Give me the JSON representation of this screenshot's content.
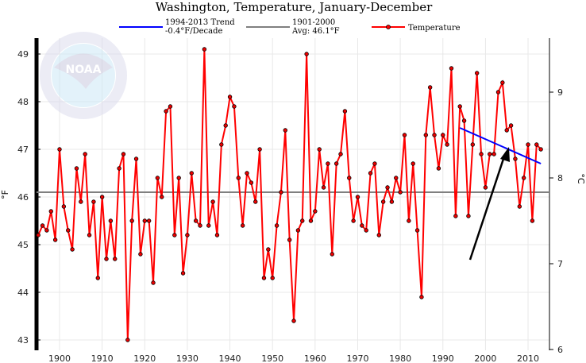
{
  "chart_data": {
    "type": "line",
    "title": "Washington, Temperature, January-December",
    "xlabel": "",
    "ylabel": "°F",
    "ylabel_right": "°C",
    "xlim": [
      1895,
      2014
    ],
    "ylim": [
      42.8,
      49.4
    ],
    "x_ticks": [
      1900,
      1910,
      1920,
      1930,
      1940,
      1950,
      1960,
      1970,
      1980,
      1990,
      2000,
      2010
    ],
    "y_ticks": [
      43,
      44,
      45,
      46,
      47,
      48,
      49
    ],
    "y_ticks_right": [
      6,
      7,
      8,
      9
    ],
    "grid": true,
    "legend_position": "top",
    "legend": {
      "trend_label1": "1994-2013 Trend",
      "trend_label2": "-0.4°F/Decade",
      "avg_label1": "1901-2000",
      "avg_label2": "Avg: 46.1°F",
      "temp_label": "Temperature"
    },
    "colors": {
      "temperature": "#ff0000",
      "trend": "#0000ff",
      "average": "#808080"
    },
    "average": 46.1,
    "trend": {
      "x": [
        1994,
        2013
      ],
      "y": [
        47.45,
        46.7
      ]
    },
    "annotation": "arrow pointing to trend line",
    "watermark": "NOAA · National Oceanic and Atmospheric Administration · U.S. Department of Commerce",
    "start_year": 1895,
    "values": [
      45.2,
      45.4,
      45.3,
      45.7,
      45.1,
      47.0,
      45.8,
      45.3,
      44.9,
      46.6,
      45.9,
      46.9,
      45.2,
      45.9,
      44.3,
      46.0,
      44.7,
      45.5,
      44.7,
      46.6,
      46.9,
      43.0,
      45.5,
      46.8,
      44.8,
      45.5,
      45.5,
      44.2,
      46.4,
      46.0,
      47.8,
      47.9,
      45.2,
      46.4,
      44.4,
      45.2,
      46.5,
      45.5,
      45.4,
      49.1,
      45.4,
      45.9,
      45.2,
      47.1,
      47.5,
      48.1,
      47.9,
      46.4,
      45.4,
      46.5,
      46.3,
      45.9,
      47.0,
      44.3,
      44.9,
      44.3,
      45.4,
      46.1,
      47.4,
      45.1,
      43.4,
      45.3,
      45.5,
      49.0,
      45.5,
      45.7,
      47.0,
      46.2,
      46.7,
      44.8,
      46.7,
      46.9,
      47.8,
      46.4,
      45.5,
      46.0,
      45.4,
      45.3,
      46.5,
      46.7,
      45.2,
      45.9,
      46.2,
      45.9,
      46.4,
      46.1,
      47.3,
      45.5,
      46.7,
      45.3,
      43.9,
      47.3,
      48.3,
      47.3,
      46.6,
      47.3,
      47.1,
      48.7,
      45.6,
      47.9,
      47.6,
      45.6,
      47.1,
      48.6,
      46.9,
      46.2,
      46.9,
      46.9,
      48.2,
      48.4,
      47.4,
      47.5,
      46.8,
      45.8,
      46.4,
      47.1,
      45.5,
      47.1,
      47.0
    ]
  }
}
